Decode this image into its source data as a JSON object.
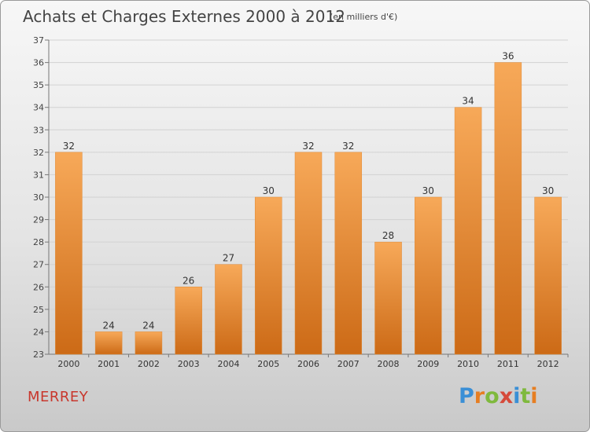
{
  "header": {
    "title": "Achats et Charges Externes 2000 à 2012",
    "unit": "(en milliers d'€)"
  },
  "footer": {
    "town": "MERREY",
    "logo": "Proxiti"
  },
  "colors": {
    "bar_top": "#f7a959",
    "bar_bottom": "#cc6a16",
    "title": "#444444",
    "town": "#c8372d"
  },
  "chart_data": {
    "type": "bar",
    "categories": [
      "2000",
      "2001",
      "2002",
      "2003",
      "2004",
      "2005",
      "2006",
      "2007",
      "2008",
      "2009",
      "2010",
      "2011",
      "2012"
    ],
    "values": [
      32,
      24,
      24,
      26,
      27,
      30,
      32,
      32,
      28,
      30,
      34,
      36,
      30
    ],
    "ylim": [
      23,
      37
    ],
    "yticks": [
      23,
      24,
      25,
      26,
      27,
      28,
      29,
      30,
      31,
      32,
      33,
      34,
      35,
      36,
      37
    ],
    "grid": true,
    "data_labels": true
  }
}
